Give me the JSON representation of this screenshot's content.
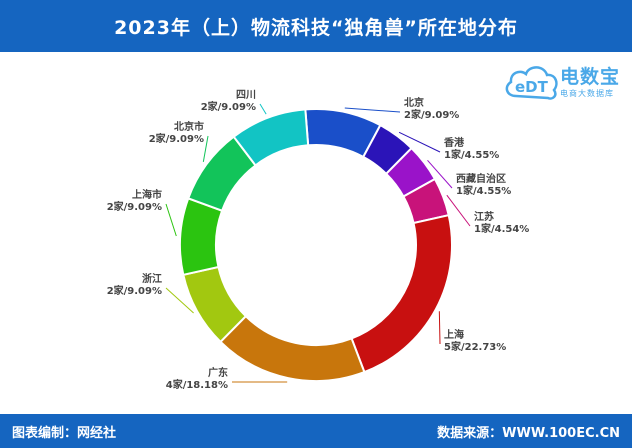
{
  "header": {
    "title": "2023年（上）物流科技“独角兽”所在地分布"
  },
  "logo": {
    "main": "电数宝",
    "sub": "电商大数据库",
    "mark": "eDT"
  },
  "footer": {
    "left": "图表编制：网经社",
    "right": "数据来源：WWW.100EC.CN"
  },
  "chart_data": {
    "type": "pie",
    "title": "2023年（上）物流科技“独角兽”所在地分布",
    "slices": [
      {
        "name": "北京",
        "count": "2家",
        "percent": "9.09%",
        "value": 9.09,
        "color": "#1a4fc9"
      },
      {
        "name": "香港",
        "count": "1家",
        "percent": "4.55%",
        "value": 4.55,
        "color": "#2b14b8"
      },
      {
        "name": "西藏自治区",
        "count": "1家",
        "percent": "4.55%",
        "value": 4.55,
        "color": "#9a13c9"
      },
      {
        "name": "江苏",
        "count": "1家",
        "percent": "4.54%",
        "value": 4.54,
        "color": "#c8137a"
      },
      {
        "name": "上海",
        "count": "5家",
        "percent": "22.73%",
        "value": 22.73,
        "color": "#c81010"
      },
      {
        "name": "广东",
        "count": "4家",
        "percent": "18.18%",
        "value": 18.18,
        "color": "#c8760c"
      },
      {
        "name": "浙江",
        "count": "2家",
        "percent": "9.09%",
        "value": 9.09,
        "color": "#a2c810"
      },
      {
        "name": "上海市",
        "count": "2家",
        "percent": "9.09%",
        "value": 9.09,
        "color": "#2bc410"
      },
      {
        "name": "北京市",
        "count": "2家",
        "percent": "9.09%",
        "value": 9.09,
        "color": "#12c45a"
      },
      {
        "name": "四川",
        "count": "2家",
        "percent": "9.09%",
        "value": 9.09,
        "color": "#12c4c4"
      }
    ]
  }
}
